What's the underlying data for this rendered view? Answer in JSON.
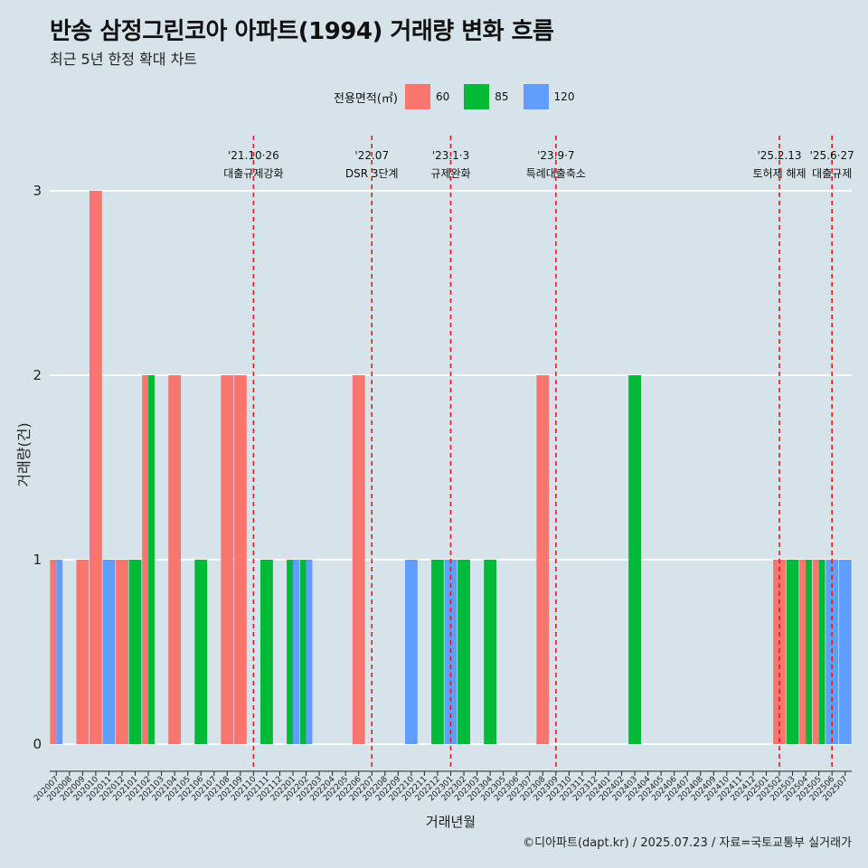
{
  "title": "반송 삼정그린코아 아파트(1994) 거래량 변화 흐름",
  "subtitle": "최근 5년 한정 확대 차트",
  "caption": "©디아파트(dapt.kr) / 2025.07.23 / 자료=국토교통부 실거래가",
  "legend": {
    "title": "전용면적(㎡)",
    "items": [
      {
        "label": "60",
        "color": "#f8766d"
      },
      {
        "label": "85",
        "color": "#00ba38"
      },
      {
        "label": "120",
        "color": "#619cff"
      }
    ]
  },
  "chart_data": {
    "type": "bar",
    "xlabel": "거래년월",
    "ylabel": "거래량(건)",
    "ylim": [
      0,
      3
    ],
    "yticks": [
      "0",
      "1",
      "2",
      "3"
    ],
    "grid": true,
    "legend_position": "top",
    "categories": [
      "202007",
      "202008",
      "202009",
      "202010",
      "202011",
      "202012",
      "202101",
      "202102",
      "202103",
      "202104",
      "202105",
      "202106",
      "202107",
      "202108",
      "202109",
      "202110",
      "202111",
      "202112",
      "202201",
      "202202",
      "202203",
      "202204",
      "202205",
      "202206",
      "202207",
      "202208",
      "202209",
      "202210",
      "202211",
      "202212",
      "202301",
      "202302",
      "202303",
      "202304",
      "202305",
      "202306",
      "202307",
      "202308",
      "202309",
      "202310",
      "202311",
      "202312",
      "202401",
      "202402",
      "202403",
      "202404",
      "202405",
      "202406",
      "202407",
      "202408",
      "202409",
      "202410",
      "202411",
      "202412",
      "202501",
      "202502",
      "202503",
      "202504",
      "202505",
      "202506",
      "202507"
    ],
    "series": [
      {
        "name": "60",
        "color": "#f8766d",
        "values": [
          1,
          0,
          1,
          3,
          0,
          1,
          0,
          2,
          0,
          2,
          0,
          0,
          0,
          2,
          2,
          0,
          0,
          0,
          0,
          0,
          0,
          0,
          0,
          2,
          0,
          0,
          0,
          0,
          0,
          0,
          0,
          0,
          0,
          0,
          0,
          0,
          0,
          2,
          0,
          0,
          0,
          0,
          0,
          0,
          0,
          0,
          0,
          0,
          0,
          0,
          0,
          0,
          0,
          0,
          0,
          1,
          0,
          1,
          1,
          0,
          0
        ]
      },
      {
        "name": "85",
        "color": "#00ba38",
        "values": [
          0,
          0,
          0,
          0,
          0,
          0,
          1,
          2,
          0,
          0,
          0,
          1,
          0,
          0,
          0,
          0,
          1,
          0,
          1,
          1,
          0,
          0,
          0,
          0,
          0,
          0,
          0,
          0,
          0,
          1,
          0,
          1,
          0,
          1,
          0,
          0,
          0,
          0,
          0,
          0,
          0,
          0,
          0,
          0,
          2,
          0,
          0,
          0,
          0,
          0,
          0,
          0,
          0,
          0,
          0,
          0,
          1,
          1,
          1,
          0,
          0
        ]
      },
      {
        "name": "120",
        "color": "#619cff",
        "values": [
          1,
          0,
          0,
          0,
          1,
          0,
          0,
          0,
          0,
          0,
          0,
          0,
          0,
          0,
          0,
          0,
          0,
          0,
          1,
          1,
          0,
          0,
          0,
          0,
          0,
          0,
          0,
          1,
          0,
          0,
          1,
          0,
          0,
          0,
          0,
          0,
          0,
          0,
          0,
          0,
          0,
          0,
          0,
          0,
          0,
          0,
          0,
          0,
          0,
          0,
          0,
          0,
          0,
          0,
          0,
          0,
          0,
          0,
          0,
          1,
          1
        ]
      }
    ],
    "annotations": [
      {
        "date": "'21.10·26",
        "label": "대출규제강화",
        "at": "202110"
      },
      {
        "date": "'22.07",
        "label": "DSR 3단계",
        "at": "202207"
      },
      {
        "date": "'23.1·3",
        "label": "규제완화",
        "at": "202301"
      },
      {
        "date": "'23.9·7",
        "label": "특례대출축소",
        "at": "202309"
      },
      {
        "date": "'25.2.13",
        "label": "토허제 해제",
        "at": "202502"
      },
      {
        "date": "'25.6·27",
        "label": "대출규제",
        "at": "202506"
      }
    ]
  }
}
